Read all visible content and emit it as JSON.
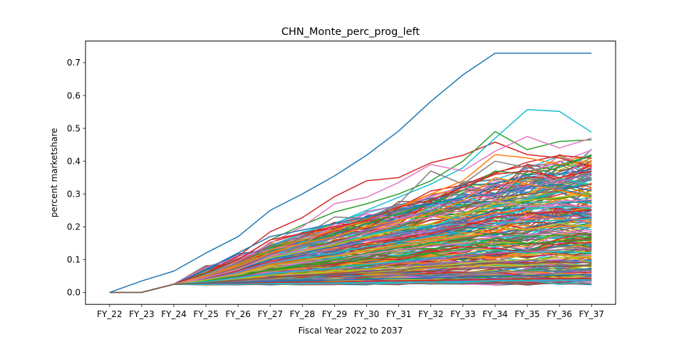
{
  "chart_data": {
    "type": "line",
    "title": "CHN_Monte_perc_prog_left",
    "xlabel": "Fiscal Year 2022 to 2037",
    "ylabel": "percent marketshare",
    "categories": [
      "FY_22",
      "FY_23",
      "FY_24",
      "FY_25",
      "FY_26",
      "FY_27",
      "FY_28",
      "FY_29",
      "FY_30",
      "FY_31",
      "FY_32",
      "FY_33",
      "FY_34",
      "FY_35",
      "FY_36",
      "FY_37"
    ],
    "ylim": [
      -0.0365,
      0.766
    ],
    "yticks": [
      0.0,
      0.1,
      0.2,
      0.3,
      0.4,
      0.5,
      0.6,
      0.7
    ],
    "ytick_labels": [
      "0.0",
      "0.1",
      "0.2",
      "0.3",
      "0.4",
      "0.5",
      "0.6",
      "0.7"
    ],
    "grid": false,
    "legend": "none",
    "palette": [
      "#1f77b4",
      "#ff7f0e",
      "#2ca02c",
      "#d62728",
      "#9467bd",
      "#8c564b",
      "#e377c2",
      "#7f7f7f",
      "#bcbd22",
      "#17becf"
    ],
    "series": [
      {
        "values": [
          0,
          0.035,
          0.065,
          0.12,
          0.17,
          0.25,
          0.3,
          0.355,
          0.418,
          0.492,
          0.582,
          0.663,
          0.729,
          0.729,
          0.729,
          0.729
        ],
        "color": "#1f77b4"
      },
      {
        "values": [
          0,
          0,
          0.025,
          0.06,
          0.11,
          0.185,
          0.228,
          0.292,
          0.34,
          0.35,
          0.395,
          0.418,
          0.458,
          0.42,
          0.41,
          0.383
        ],
        "color": "#d62728"
      },
      {
        "values": [
          0,
          0,
          0.025,
          0.055,
          0.1,
          0.16,
          0.205,
          0.245,
          0.27,
          0.3,
          0.34,
          0.4,
          0.49,
          0.435,
          0.46,
          0.465
        ],
        "color": "#2ca02c"
      },
      {
        "values": [
          0,
          0,
          0.025,
          0.05,
          0.09,
          0.14,
          0.18,
          0.21,
          0.25,
          0.29,
          0.33,
          0.38,
          0.47,
          0.557,
          0.552,
          0.488
        ],
        "color": "#17becf"
      },
      {
        "values": [
          0,
          0,
          0.025,
          0.052,
          0.095,
          0.15,
          0.2,
          0.27,
          0.29,
          0.335,
          0.39,
          0.37,
          0.43,
          0.475,
          0.44,
          0.47
        ],
        "color": "#e377c2"
      },
      {
        "values": [
          0,
          0,
          0.025,
          0.05,
          0.09,
          0.14,
          0.17,
          0.23,
          0.225,
          0.27,
          0.37,
          0.33,
          0.4,
          0.38,
          0.36,
          0.34
        ],
        "color": "#7f7f7f"
      },
      {
        "values": [
          0,
          0,
          0.025,
          0.048,
          0.085,
          0.13,
          0.16,
          0.19,
          0.22,
          0.26,
          0.3,
          0.34,
          0.42,
          0.41,
          0.39,
          0.4
        ],
        "color": "#ff7f0e"
      },
      {
        "values": [
          0,
          0,
          0.025,
          0.046,
          0.08,
          0.12,
          0.15,
          0.18,
          0.21,
          0.24,
          0.27,
          0.31,
          0.37,
          0.36,
          0.38,
          0.42
        ],
        "color": "#2ca02c"
      },
      {
        "values": [
          0,
          0,
          0.025,
          0.045,
          0.078,
          0.115,
          0.14,
          0.165,
          0.19,
          0.22,
          0.25,
          0.29,
          0.33,
          0.32,
          0.34,
          0.36
        ],
        "color": "#9467bd"
      },
      {
        "values": [
          0,
          0,
          0.025,
          0.044,
          0.075,
          0.11,
          0.13,
          0.155,
          0.18,
          0.2,
          0.23,
          0.26,
          0.29,
          0.3,
          0.31,
          0.33
        ],
        "color": "#8c564b"
      },
      {
        "values": [
          0,
          0,
          0.025,
          0.043,
          0.072,
          0.105,
          0.125,
          0.145,
          0.17,
          0.19,
          0.21,
          0.24,
          0.27,
          0.28,
          0.29,
          0.3
        ],
        "color": "#bcbd22"
      },
      {
        "values": [
          0,
          0,
          0.025,
          0.042,
          0.07,
          0.1,
          0.12,
          0.14,
          0.16,
          0.18,
          0.2,
          0.22,
          0.25,
          0.26,
          0.27,
          0.28
        ],
        "color": "#1f77b4"
      },
      {
        "values": [
          0,
          0,
          0.025,
          0.041,
          0.066,
          0.095,
          0.11,
          0.13,
          0.15,
          0.165,
          0.18,
          0.2,
          0.23,
          0.24,
          0.245,
          0.25
        ],
        "color": "#d62728"
      },
      {
        "values": [
          0,
          0,
          0.025,
          0.04,
          0.062,
          0.09,
          0.105,
          0.12,
          0.14,
          0.155,
          0.17,
          0.185,
          0.21,
          0.215,
          0.22,
          0.225
        ],
        "color": "#17becf"
      },
      {
        "values": [
          0,
          0,
          0.025,
          0.039,
          0.058,
          0.085,
          0.1,
          0.11,
          0.125,
          0.14,
          0.155,
          0.17,
          0.19,
          0.195,
          0.2,
          0.205
        ],
        "color": "#ff7f0e"
      },
      {
        "values": [
          0,
          0,
          0.025,
          0.038,
          0.055,
          0.08,
          0.09,
          0.1,
          0.115,
          0.13,
          0.14,
          0.15,
          0.17,
          0.175,
          0.18,
          0.185
        ],
        "color": "#e377c2"
      },
      {
        "values": [
          0,
          0,
          0.025,
          0.036,
          0.05,
          0.07,
          0.08,
          0.09,
          0.1,
          0.11,
          0.12,
          0.13,
          0.145,
          0.15,
          0.155,
          0.16
        ],
        "color": "#2ca02c"
      },
      {
        "values": [
          0,
          0,
          0.025,
          0.034,
          0.046,
          0.06,
          0.068,
          0.075,
          0.085,
          0.09,
          0.1,
          0.11,
          0.12,
          0.125,
          0.13,
          0.135
        ],
        "color": "#9467bd"
      },
      {
        "values": [
          0,
          0,
          0.025,
          0.032,
          0.042,
          0.052,
          0.058,
          0.064,
          0.07,
          0.075,
          0.08,
          0.088,
          0.095,
          0.1,
          0.105,
          0.11
        ],
        "color": "#bcbd22"
      },
      {
        "values": [
          0,
          0,
          0.025,
          0.03,
          0.038,
          0.045,
          0.05,
          0.054,
          0.058,
          0.062,
          0.066,
          0.07,
          0.075,
          0.078,
          0.08,
          0.082
        ],
        "color": "#8c564b"
      },
      {
        "values": [
          0,
          0,
          0.025,
          0.028,
          0.034,
          0.04,
          0.043,
          0.046,
          0.049,
          0.052,
          0.055,
          0.058,
          0.062,
          0.064,
          0.066,
          0.068
        ],
        "color": "#7f7f7f"
      },
      {
        "values": [
          0,
          0,
          0.025,
          0.026,
          0.03,
          0.034,
          0.036,
          0.038,
          0.04,
          0.042,
          0.044,
          0.046,
          0.05,
          0.052,
          0.053,
          0.055
        ],
        "color": "#1f77b4"
      },
      {
        "values": [
          0,
          0,
          0.025,
          0.025,
          0.027,
          0.03,
          0.031,
          0.032,
          0.034,
          0.035,
          0.037,
          0.038,
          0.04,
          0.041,
          0.042,
          0.043
        ],
        "color": "#d62728"
      },
      {
        "values": [
          0,
          0,
          0.025,
          0.024,
          0.025,
          0.027,
          0.028,
          0.029,
          0.03,
          0.031,
          0.032,
          0.033,
          0.035,
          0.036,
          0.037,
          0.038
        ],
        "color": "#17becf"
      },
      {
        "values": [
          0,
          0,
          0.025,
          0.07,
          0.12,
          0.17,
          0.19,
          0.21,
          0.23,
          0.25,
          0.27,
          0.29,
          0.3,
          0.32,
          0.33,
          0.31
        ],
        "color": "#1f77b4"
      },
      {
        "values": [
          0,
          0,
          0.025,
          0.06,
          0.1,
          0.16,
          0.18,
          0.2,
          0.22,
          0.26,
          0.28,
          0.32,
          0.36,
          0.37,
          0.35,
          0.37
        ],
        "color": "#d62728"
      },
      {
        "values": [
          0,
          0,
          0.025,
          0.05,
          0.08,
          0.12,
          0.15,
          0.17,
          0.2,
          0.22,
          0.24,
          0.28,
          0.35,
          0.33,
          0.31,
          0.29
        ],
        "color": "#ff7f0e"
      },
      {
        "values": [
          0,
          0,
          0.025,
          0.04,
          0.06,
          0.09,
          0.11,
          0.13,
          0.16,
          0.18,
          0.19,
          0.21,
          0.24,
          0.22,
          0.23,
          0.21
        ],
        "color": "#9467bd"
      },
      {
        "values": [
          0,
          0,
          0.025,
          0.035,
          0.05,
          0.07,
          0.085,
          0.1,
          0.12,
          0.135,
          0.15,
          0.165,
          0.18,
          0.17,
          0.175,
          0.165
        ],
        "color": "#2ca02c"
      },
      {
        "values": [
          0,
          0,
          0.025,
          0.045,
          0.07,
          0.11,
          0.13,
          0.15,
          0.18,
          0.21,
          0.23,
          0.25,
          0.28,
          0.26,
          0.27,
          0.26
        ],
        "color": "#e377c2"
      },
      {
        "values": [
          0,
          0,
          0.025,
          0.038,
          0.056,
          0.08,
          0.095,
          0.11,
          0.13,
          0.145,
          0.16,
          0.175,
          0.2,
          0.19,
          0.21,
          0.2
        ],
        "color": "#bcbd22"
      },
      {
        "values": [
          0,
          0,
          0.025,
          0.033,
          0.044,
          0.058,
          0.065,
          0.075,
          0.085,
          0.095,
          0.105,
          0.115,
          0.13,
          0.12,
          0.125,
          0.12
        ],
        "color": "#17becf"
      },
      {
        "values": [
          0,
          0,
          0.025,
          0.029,
          0.036,
          0.047,
          0.052,
          0.058,
          0.064,
          0.07,
          0.077,
          0.083,
          0.09,
          0.088,
          0.092,
          0.09
        ],
        "color": "#8c564b"
      }
    ],
    "ensemble": {
      "count": 220,
      "seed": 12345,
      "base_value": 0.025,
      "start_index": 2,
      "final_min": 0.03,
      "final_max": 0.42
    }
  }
}
